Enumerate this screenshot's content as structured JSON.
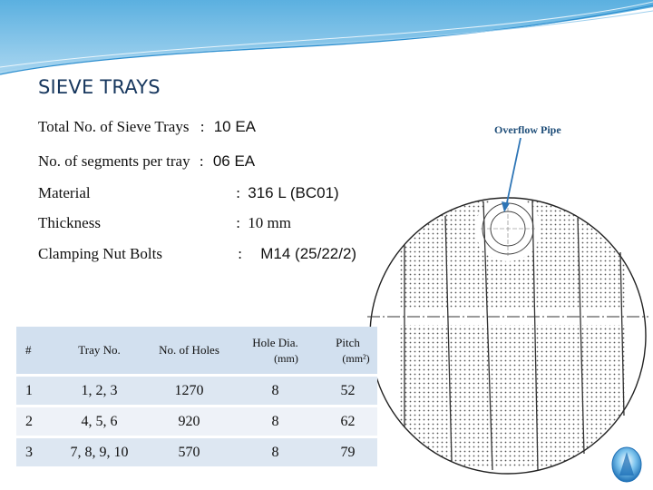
{
  "slide": {
    "title": "SIEVE TRAYS",
    "specs": [
      {
        "label": "Total No. of Sieve Trays",
        "sep": ":",
        "value": "10 EA"
      },
      {
        "label": "No. of segments per tray",
        "sep": ":",
        "value": "06 EA"
      },
      {
        "label": "Material",
        "sep": ":",
        "value": "316 L (BC01)"
      },
      {
        "label": "Thickness",
        "sep": ":",
        "value": "10 mm"
      },
      {
        "label": "Clamping Nut Bolts",
        "sep": ":",
        "value": "M14 (25/22/2)"
      }
    ],
    "overflow_label": "Overflow Pipe"
  },
  "table": {
    "headers": {
      "num": "#",
      "tray": "Tray No.",
      "holes": "No. of Holes",
      "dia": "Hole Dia.",
      "dia_unit": "(mm)",
      "pitch": "Pitch",
      "pitch_unit": "(mm²)"
    },
    "rows": [
      {
        "num": "1",
        "tray": "1, 2, 3",
        "holes": "1270",
        "dia": "8",
        "pitch": "52"
      },
      {
        "num": "2",
        "tray": "4, 5, 6",
        "holes": "920",
        "dia": "8",
        "pitch": "62"
      },
      {
        "num": "3",
        "tray": "7, 8, 9, 10",
        "holes": "570",
        "dia": "8",
        "pitch": "79"
      }
    ]
  },
  "colors": {
    "title": "#17375e",
    "banner": "#4aa3d8",
    "table_header": "#d2e0ef",
    "table_row": "#dde7f2",
    "arrow": "#2e75b6"
  },
  "icons": {
    "nav_badge": "up-arrow-icon"
  }
}
